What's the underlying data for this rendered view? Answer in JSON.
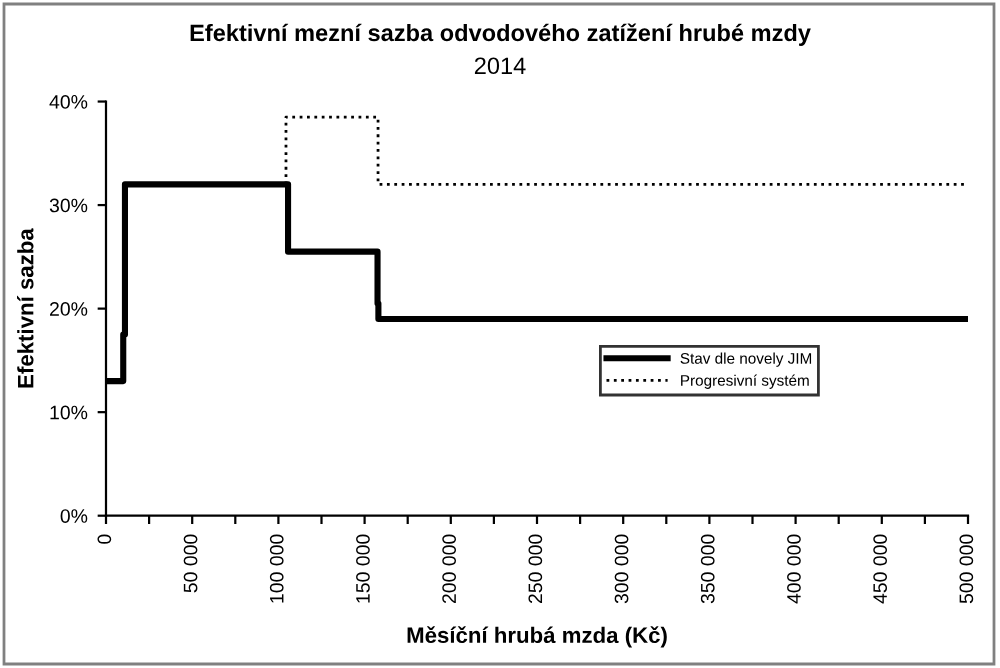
{
  "chart_data": {
    "type": "line",
    "title": "Efektivní mezní sazba odvodového zatížení hrubé mzdy",
    "subtitle": "2014",
    "xlabel": "Měsíční hrubá mzda (Kč)",
    "ylabel": "Efektivní sazba",
    "series": [
      {
        "name": "Stav dle novely JIM",
        "color": "#000000",
        "line_style": "solid",
        "x": [
          0,
          10000,
          10000,
          11000,
          11000,
          105600,
          105600,
          157500,
          157500,
          158000,
          158000,
          500000
        ],
        "values": [
          13,
          13,
          17.5,
          17.5,
          32,
          32,
          25.5,
          25.5,
          20.5,
          20.5,
          19,
          19
        ]
      },
      {
        "name": "Progresivní systém",
        "color": "#000000",
        "line_style": "dotted",
        "x": [
          104400,
          104400,
          157800,
          157800,
          500000
        ],
        "values": [
          32,
          38.5,
          38.5,
          32,
          32
        ]
      }
    ],
    "xlim": [
      0,
      500000
    ],
    "ylim": [
      0,
      40
    ],
    "xticks": [
      {
        "value": 0,
        "label": "0"
      },
      {
        "value": 25000,
        "label": null
      },
      {
        "value": 50000,
        "label": "50 000"
      },
      {
        "value": 75000,
        "label": null
      },
      {
        "value": 100000,
        "label": "100 000"
      },
      {
        "value": 125000,
        "label": null
      },
      {
        "value": 150000,
        "label": "150 000"
      },
      {
        "value": 175000,
        "label": null
      },
      {
        "value": 200000,
        "label": "200 000"
      },
      {
        "value": 225000,
        "label": null
      },
      {
        "value": 250000,
        "label": "250 000"
      },
      {
        "value": 275000,
        "label": null
      },
      {
        "value": 300000,
        "label": "300 000"
      },
      {
        "value": 325000,
        "label": null
      },
      {
        "value": 350000,
        "label": "350 000"
      },
      {
        "value": 375000,
        "label": null
      },
      {
        "value": 400000,
        "label": "400 000"
      },
      {
        "value": 425000,
        "label": null
      },
      {
        "value": 450000,
        "label": "450 000"
      },
      {
        "value": 475000,
        "label": null
      },
      {
        "value": 500000,
        "label": "500 000"
      }
    ],
    "yticks": [
      {
        "value": 0,
        "label": "0%"
      },
      {
        "value": 10,
        "label": "10%"
      },
      {
        "value": 20,
        "label": "20%"
      },
      {
        "value": 30,
        "label": "30%"
      },
      {
        "value": 40,
        "label": "40%"
      }
    ],
    "grid": false,
    "legend": "right",
    "marker": "none"
  }
}
